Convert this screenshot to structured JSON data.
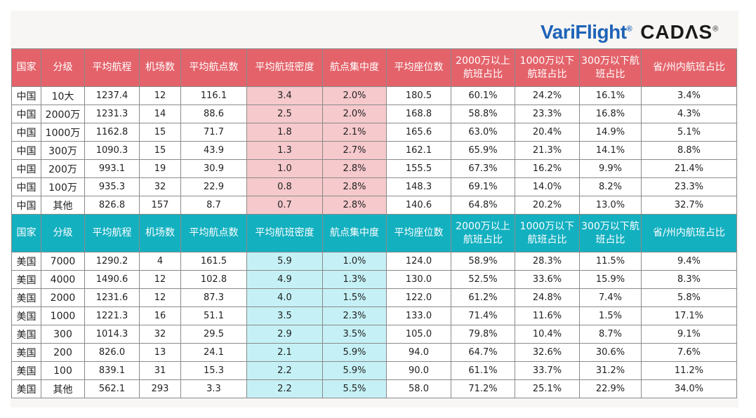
{
  "logos": {
    "variflight": "VariFlight",
    "variflight_mark": "®",
    "cadas": "CADΛS",
    "cadas_mark": "®"
  },
  "headers": [
    "国家",
    "分级",
    "平均航程",
    "机场数",
    "平均航点数",
    "平均航班密度",
    "航点集中度",
    "平均座位数",
    "2000万以上航班占比",
    "1000万以下航班占比",
    "300万以下航班占比",
    "省/州内航班占比"
  ],
  "china_rows": [
    [
      "中国",
      "10大",
      "1237.4",
      "12",
      "116.1",
      "3.4",
      "2.0%",
      "180.5",
      "60.1%",
      "24.2%",
      "16.1%",
      "3.4%"
    ],
    [
      "中国",
      "2000万",
      "1231.3",
      "14",
      "88.6",
      "2.5",
      "2.0%",
      "168.8",
      "58.8%",
      "23.3%",
      "16.8%",
      "4.3%"
    ],
    [
      "中国",
      "1000万",
      "1162.8",
      "15",
      "71.7",
      "1.8",
      "2.1%",
      "165.6",
      "63.0%",
      "20.4%",
      "14.9%",
      "5.1%"
    ],
    [
      "中国",
      "300万",
      "1090.3",
      "15",
      "43.9",
      "1.3",
      "2.7%",
      "162.1",
      "65.9%",
      "21.3%",
      "14.1%",
      "8.8%"
    ],
    [
      "中国",
      "200万",
      "993.1",
      "19",
      "30.9",
      "1.0",
      "2.8%",
      "155.5",
      "67.3%",
      "16.2%",
      "9.9%",
      "21.4%"
    ],
    [
      "中国",
      "100万",
      "935.3",
      "32",
      "22.9",
      "0.8",
      "2.8%",
      "148.3",
      "69.1%",
      "14.0%",
      "8.2%",
      "23.3%"
    ],
    [
      "中国",
      "其他",
      "826.8",
      "157",
      "8.7",
      "0.7",
      "2.8%",
      "140.6",
      "64.8%",
      "20.2%",
      "13.0%",
      "32.7%"
    ]
  ],
  "us_rows": [
    [
      "美国",
      "7000",
      "1290.2",
      "4",
      "161.5",
      "5.9",
      "1.0%",
      "124.0",
      "58.9%",
      "28.3%",
      "11.5%",
      "9.4%"
    ],
    [
      "美国",
      "4000",
      "1490.6",
      "12",
      "102.8",
      "4.9",
      "1.3%",
      "130.0",
      "52.5%",
      "33.6%",
      "15.9%",
      "8.3%"
    ],
    [
      "美国",
      "2000",
      "1231.6",
      "12",
      "87.3",
      "4.0",
      "1.5%",
      "122.0",
      "61.2%",
      "24.8%",
      "7.4%",
      "5.8%"
    ],
    [
      "美国",
      "1000",
      "1221.3",
      "16",
      "51.1",
      "3.5",
      "2.3%",
      "133.0",
      "71.4%",
      "11.6%",
      "1.5%",
      "17.1%"
    ],
    [
      "美国",
      "300",
      "1014.3",
      "32",
      "29.5",
      "2.9",
      "3.5%",
      "105.0",
      "79.8%",
      "10.4%",
      "8.7%",
      "9.1%"
    ],
    [
      "美国",
      "200",
      "826.0",
      "13",
      "24.1",
      "2.1",
      "5.9%",
      "94.0",
      "64.7%",
      "32.6%",
      "30.6%",
      "7.6%"
    ],
    [
      "美国",
      "100",
      "839.1",
      "31",
      "15.3",
      "2.2",
      "5.9%",
      "90.0",
      "61.1%",
      "33.7%",
      "31.2%",
      "11.2%"
    ],
    [
      "美国",
      "其他",
      "562.1",
      "293",
      "3.3",
      "2.2",
      "5.5%",
      "58.0",
      "71.2%",
      "25.1%",
      "22.9%",
      "34.0%"
    ]
  ],
  "colors": {
    "china_header": "#e4636b",
    "china_highlight": "#f6c9cc",
    "us_header": "#13b0c0",
    "us_highlight": "#c5f1f6",
    "variflight_blue": "#1f63b8"
  }
}
